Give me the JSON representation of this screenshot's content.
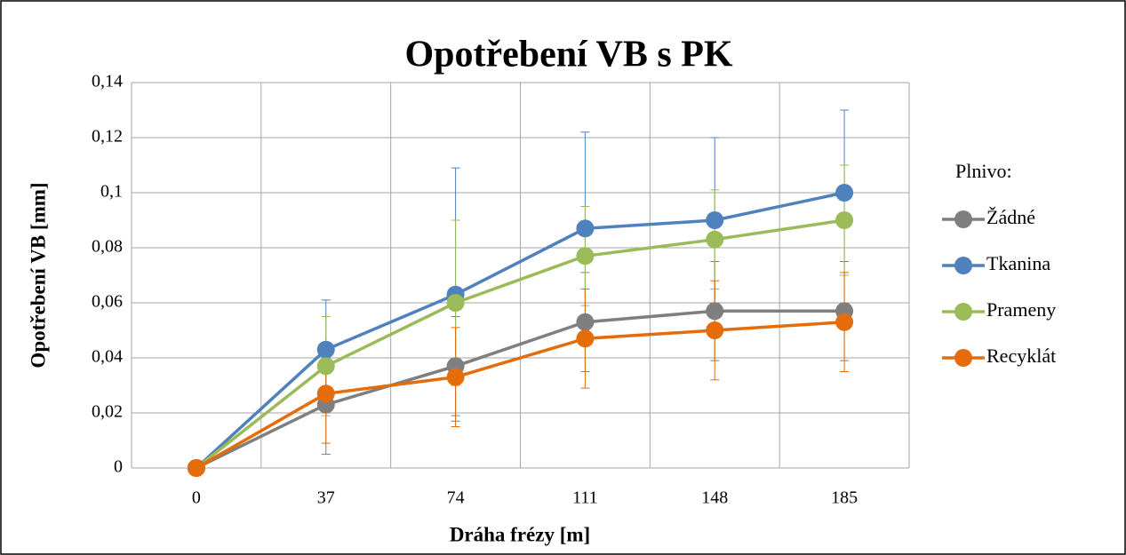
{
  "chart_data": {
    "type": "line",
    "title": "Opotřebení VB s PK",
    "x_label": "Dráha frézy [m]",
    "y_label": "Opotřebení VB [mm]",
    "legend_title": "Plnivo:",
    "legend": "right",
    "grid": true,
    "categories": [
      "0",
      "37",
      "74",
      "111",
      "148",
      "185"
    ],
    "ylim": [
      0,
      0.14
    ],
    "yticks": [
      0,
      {
        "value": 0.02,
        "label": "0,02"
      },
      {
        "value": 0.04,
        "label": "0,04"
      },
      {
        "value": 0.06,
        "label": "0,06"
      },
      {
        "value": 0.08,
        "label": "0,08"
      },
      {
        "value": 0.1,
        "label": "0,1"
      },
      {
        "value": 0.12,
        "label": "0,12"
      },
      {
        "value": 0.14,
        "label": "0,14"
      }
    ],
    "series": [
      {
        "name": "Žádné",
        "color": "#7f7f7f",
        "values": [
          0,
          0.023,
          0.037,
          0.053,
          0.057,
          0.057
        ],
        "errors": [
          0,
          0.018,
          0.018,
          0.018,
          0.018,
          0.018
        ]
      },
      {
        "name": "Tkanina",
        "color": "#4f81bd",
        "values": [
          0,
          0.043,
          0.063,
          0.087,
          0.09,
          0.1
        ],
        "errors": [
          0,
          0.018,
          0.046,
          0.035,
          0.03,
          0.03
        ]
      },
      {
        "name": "Prameny",
        "color": "#9bbb59",
        "values": [
          0,
          0.037,
          0.06,
          0.077,
          0.083,
          0.09
        ],
        "errors": [
          0,
          0.018,
          0.03,
          0.018,
          0.018,
          0.02
        ]
      },
      {
        "name": "Recyklát",
        "color": "#e46c0a",
        "values": [
          0,
          0.027,
          0.033,
          0.047,
          0.05,
          0.053
        ],
        "errors": [
          0,
          0.018,
          0.018,
          0.018,
          0.018,
          0.018
        ]
      }
    ]
  }
}
